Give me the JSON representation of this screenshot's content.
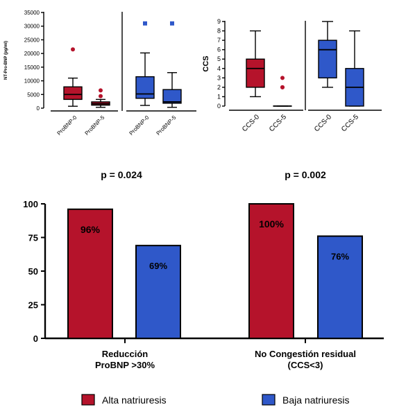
{
  "colors": {
    "red": "#b5132b",
    "blue": "#2f58c9",
    "axis": "#000000"
  },
  "chart_data": [
    {
      "type": "boxplot",
      "ylabel": "NT-Pro-BNP (pg/ml)",
      "ylim": [
        0,
        35000
      ],
      "yticks": [
        "0",
        "5000",
        "10000",
        "15000",
        "20000",
        "25000",
        "30000",
        "35000"
      ],
      "groups": [
        {
          "label": "ProBNP-0",
          "color": "red",
          "q1": 3200,
          "median": 5000,
          "q3": 7800,
          "whisker_low": 700,
          "whisker_high": 11000,
          "outliers": [
            21500
          ]
        },
        {
          "label": "ProBNP-5",
          "color": "red",
          "q1": 1100,
          "median": 1600,
          "q3": 2300,
          "whisker_low": 300,
          "whisker_high": 3200,
          "outliers": [
            4400,
            6500
          ]
        },
        {
          "label": "ProBNP-0",
          "color": "blue",
          "q1": 3600,
          "median": 5200,
          "q3": 11500,
          "whisker_low": 1000,
          "whisker_high": 20200,
          "outliers": [
            31000
          ]
        },
        {
          "label": "ProBNP-5",
          "color": "blue",
          "q1": 1800,
          "median": 2300,
          "q3": 6800,
          "whisker_low": 300,
          "whisker_high": 13000,
          "outliers": [
            31000
          ]
        }
      ]
    },
    {
      "type": "boxplot",
      "ylabel": "CCS",
      "ylim": [
        0,
        9
      ],
      "yticks": [
        "0",
        "1",
        "2",
        "3",
        "4",
        "5",
        "6",
        "7",
        "8",
        "9"
      ],
      "groups": [
        {
          "label": "CCS-0",
          "color": "red",
          "q1": 2,
          "median": 4,
          "q3": 5,
          "whisker_low": 1,
          "whisker_high": 8,
          "outliers": []
        },
        {
          "label": "CCS-5",
          "color": "red",
          "q1": 0,
          "median": 0,
          "q3": 0,
          "whisker_low": 0,
          "whisker_high": 0,
          "outliers": [
            3,
            2,
            2
          ]
        },
        {
          "label": "CCS-0",
          "color": "blue",
          "q1": 3,
          "median": 6,
          "q3": 7,
          "whisker_low": 2,
          "whisker_high": 9,
          "outliers": []
        },
        {
          "label": "CCS-5",
          "color": "blue",
          "q1": 0,
          "median": 2,
          "q3": 4,
          "whisker_low": 0,
          "whisker_high": 8,
          "outliers": []
        }
      ]
    },
    {
      "type": "bar",
      "ylim": [
        0,
        100
      ],
      "yticks": [
        "0",
        "25",
        "50",
        "75",
        "100"
      ],
      "categories": [
        {
          "line1": "Reducción",
          "line2": "ProBNP >30%"
        },
        {
          "line1": "No Congestión residual",
          "line2": "(CCS<3)"
        }
      ],
      "series": [
        {
          "name": "Alta natriuresis",
          "color": "red",
          "values": [
            96,
            100
          ],
          "labels": [
            "96%",
            "100%"
          ]
        },
        {
          "name": "Baja natriuresis",
          "color": "blue",
          "values": [
            69,
            76
          ],
          "labels": [
            "69%",
            "76%"
          ]
        }
      ],
      "pvalues": [
        "p = 0.024",
        "p = 0.002"
      ]
    }
  ]
}
